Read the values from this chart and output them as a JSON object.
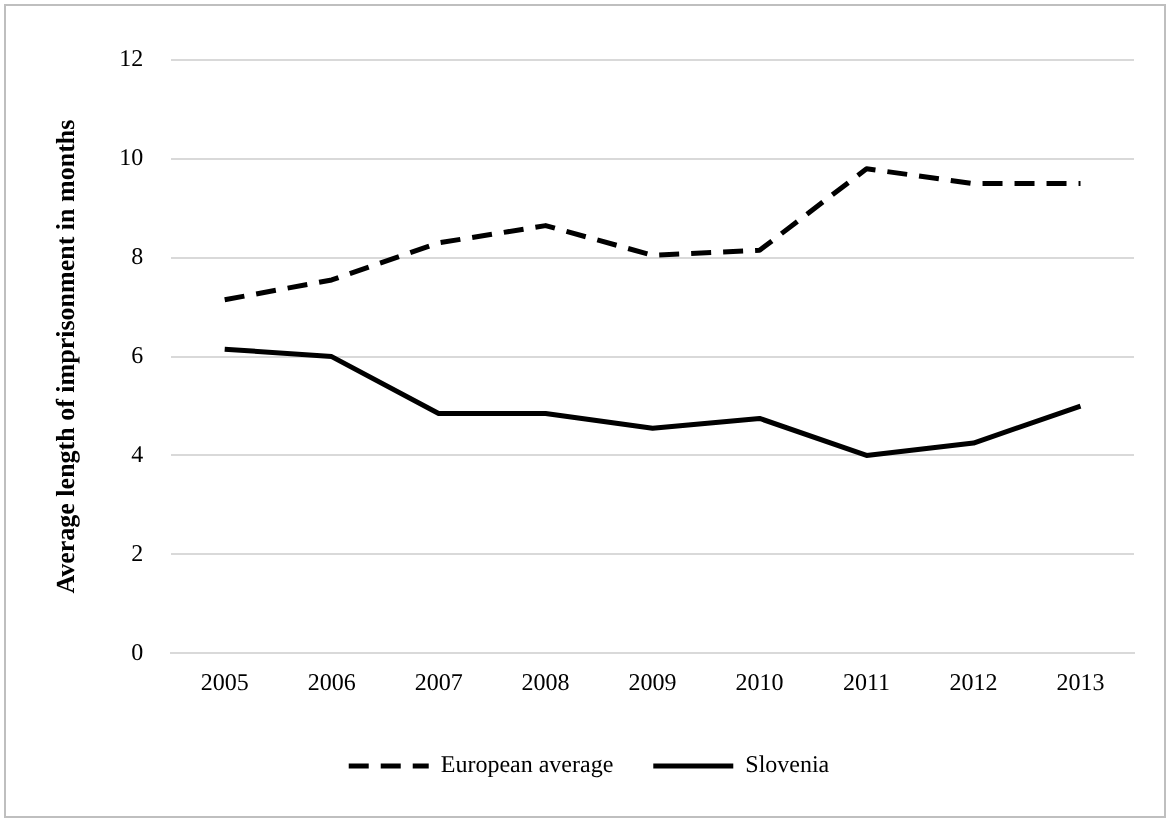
{
  "chart_data": {
    "type": "line",
    "ylabel": "Average length of imprisonment in months",
    "categories": [
      "2005",
      "2006",
      "2007",
      "2008",
      "2009",
      "2010",
      "2011",
      "2012",
      "2013"
    ],
    "series": [
      {
        "name": "European average",
        "color": "#000000",
        "line_style": "dashed",
        "values": [
          7.15,
          7.55,
          8.3,
          8.65,
          8.05,
          8.15,
          9.8,
          9.5,
          9.5
        ]
      },
      {
        "name": "Slovenia",
        "color": "#000000",
        "line_style": "solid",
        "values": [
          6.15,
          6.0,
          4.85,
          4.85,
          4.55,
          4.75,
          4.0,
          4.25,
          5.0
        ]
      }
    ],
    "ylim": [
      0,
      12
    ],
    "yticks": [
      0,
      2,
      4,
      6,
      8,
      10,
      12
    ],
    "grid": "y",
    "legend": "bottom",
    "marker": "none"
  }
}
